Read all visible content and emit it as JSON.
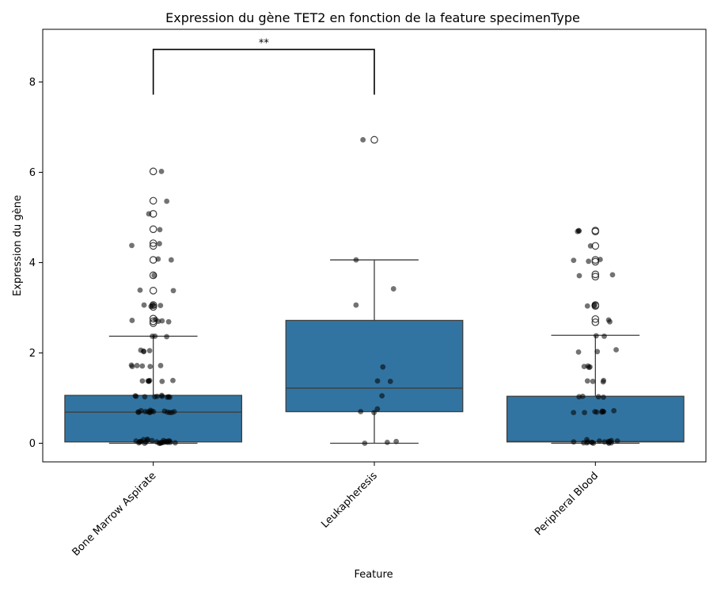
{
  "chart_data": {
    "type": "box",
    "title": "Expression du gène TET2 en fonction de la feature specimenType",
    "xlabel": "Feature",
    "ylabel": "Expression du gène",
    "ylim": [
      -0.42,
      9.2
    ],
    "yticks": [
      0,
      2,
      4,
      6,
      8
    ],
    "grid": false,
    "box_color": "#3274a1",
    "point_color": "#000000",
    "categories": [
      "Bone Marrow Aspirate",
      "Leukapheresis",
      "Peripheral Blood"
    ],
    "boxes": [
      {
        "category": "Bone Marrow Aspirate",
        "whisker_low": 0.0,
        "q1": 0.03,
        "median": 0.69,
        "q3": 1.06,
        "whisker_high": 2.37,
        "outliers": [
          2.66,
          2.7,
          2.76,
          3.02,
          3.06,
          3.38,
          3.72,
          4.06,
          4.37,
          4.43,
          4.74,
          5.08,
          5.37,
          6.02
        ]
      },
      {
        "category": "Leukapheresis",
        "whisker_low": 0.0,
        "q1": 0.7,
        "median": 1.22,
        "q3": 2.72,
        "whisker_high": 4.06,
        "outliers": [
          6.72
        ]
      },
      {
        "category": "Peripheral Blood",
        "whisker_low": 0.0,
        "q1": 0.03,
        "median": 0.04,
        "q3": 1.04,
        "whisker_high": 2.39,
        "outliers": [
          2.68,
          2.75,
          3.04,
          3.06,
          3.69,
          3.74,
          4.02,
          4.06,
          4.37,
          4.69,
          4.71
        ]
      }
    ],
    "points": [
      {
        "category": "Bone Marrow Aspirate",
        "values": [
          0.0,
          0.0,
          0.0,
          0.01,
          0.01,
          0.01,
          0.01,
          0.02,
          0.02,
          0.02,
          0.02,
          0.03,
          0.03,
          0.03,
          0.03,
          0.04,
          0.04,
          0.04,
          0.05,
          0.05,
          0.05,
          0.06,
          0.06,
          0.07,
          0.08,
          0.09,
          0.68,
          0.68,
          0.68,
          0.69,
          0.69,
          0.69,
          0.69,
          0.7,
          0.7,
          0.7,
          0.7,
          0.71,
          0.71,
          0.72,
          0.73,
          1.02,
          1.02,
          1.03,
          1.03,
          1.03,
          1.04,
          1.04,
          1.04,
          1.05,
          1.06,
          1.37,
          1.37,
          1.38,
          1.38,
          1.38,
          1.39,
          1.39,
          1.7,
          1.7,
          1.71,
          1.72,
          1.72,
          1.73,
          2.03,
          2.04,
          2.05,
          2.06,
          2.36,
          2.37,
          2.37,
          2.69,
          2.7,
          2.71,
          2.72,
          2.74,
          3.03,
          3.04,
          3.05,
          3.06,
          3.07,
          3.38,
          3.39,
          3.72,
          4.06,
          4.08,
          4.38,
          4.42,
          4.73,
          5.08,
          5.36,
          6.02
        ]
      },
      {
        "category": "Leukapheresis",
        "values": [
          0.0,
          0.02,
          0.04,
          0.68,
          0.7,
          0.76,
          1.05,
          1.37,
          1.38,
          1.69,
          3.06,
          3.42,
          4.06,
          6.72
        ]
      },
      {
        "category": "Peripheral Blood",
        "values": [
          0.0,
          0.0,
          0.01,
          0.01,
          0.01,
          0.02,
          0.02,
          0.02,
          0.03,
          0.03,
          0.03,
          0.04,
          0.04,
          0.05,
          0.05,
          0.06,
          0.08,
          0.68,
          0.68,
          0.69,
          0.69,
          0.7,
          0.7,
          0.7,
          0.71,
          0.72,
          1.02,
          1.03,
          1.03,
          1.04,
          1.36,
          1.37,
          1.38,
          1.39,
          1.68,
          1.69,
          1.7,
          1.71,
          2.02,
          2.03,
          2.07,
          2.37,
          2.38,
          2.69,
          2.73,
          3.04,
          3.05,
          3.06,
          3.71,
          3.73,
          4.03,
          4.05,
          4.07,
          4.37,
          4.69,
          4.7,
          4.71
        ]
      }
    ],
    "annotations": [
      {
        "text": "**",
        "between": [
          "Bone Marrow Aspirate",
          "Leukapheresis"
        ],
        "y_low": 7.72,
        "y_high": 8.72
      }
    ]
  }
}
